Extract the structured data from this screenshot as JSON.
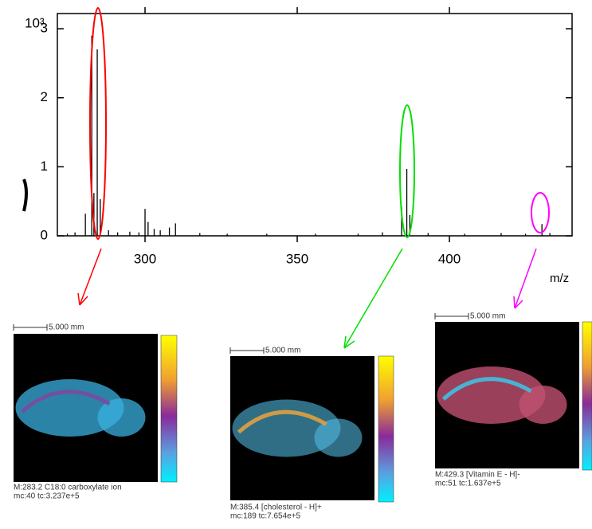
{
  "chart_data": {
    "type": "bar",
    "y_multiplier": "10³",
    "x_label": "m/z",
    "x": [
      274.5,
      277,
      280.4,
      282.5,
      283.2,
      284.3,
      285.3,
      288,
      291,
      295,
      298,
      300,
      301,
      303,
      305,
      308,
      310,
      318,
      327,
      340,
      356,
      370,
      378,
      384.3,
      386,
      387,
      393,
      405,
      417,
      425,
      430.4,
      433
    ],
    "values": [
      0.03,
      0.05,
      0.32,
      2.9,
      0.62,
      2.7,
      0.53,
      0.08,
      0.05,
      0.06,
      0.05,
      0.39,
      0.2,
      0.1,
      0.08,
      0.12,
      0.18,
      0.04,
      0.03,
      0.03,
      0.03,
      0.03,
      0.05,
      0.42,
      0.97,
      0.3,
      0.04,
      0.03,
      0.04,
      0.03,
      0.17,
      0.04
    ],
    "color": "#000000",
    "xlim": [
      271.2,
      440.3
    ],
    "ylim": [
      0,
      3.22
    ],
    "xticks": [
      300,
      350,
      400
    ],
    "yticks": [
      0,
      1,
      2,
      3
    ]
  },
  "panels": [
    {
      "scale": "5.000 mm",
      "caption_lines": [
        "M:283.2  C18:0 carboxylate ion",
        "mc:40 tc:3.237e+5"
      ]
    },
    {
      "scale": "5.000 mm",
      "caption_lines": [
        "M:385.4  [cholesterol - H]+",
        "mc:189 tc:7.654e+5"
      ]
    },
    {
      "scale": "5.000 mm",
      "caption_lines": [
        "M:429.3  [Vitamin E - H]-",
        "mc:51 tc:1.637e+5"
      ]
    }
  ]
}
